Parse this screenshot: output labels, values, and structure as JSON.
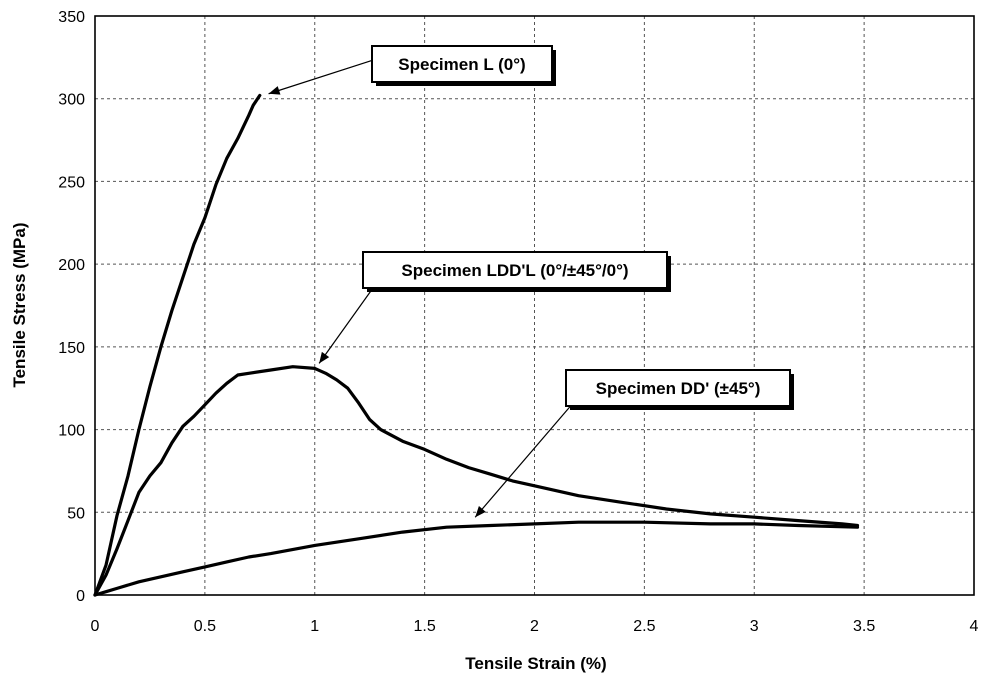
{
  "chart_data": {
    "type": "line",
    "title": "",
    "xlabel": "Tensile Strain (%)",
    "ylabel": "Tensile Stress (MPa)",
    "xlim": [
      0,
      4
    ],
    "ylim": [
      0,
      350
    ],
    "x_ticks": [
      "0",
      "0.5",
      "1",
      "1.5",
      "2",
      "2.5",
      "3",
      "3.5",
      "4"
    ],
    "y_ticks": [
      "0",
      "50",
      "100",
      "150",
      "200",
      "250",
      "300",
      "350"
    ],
    "grid": true,
    "legend": "none",
    "series": [
      {
        "key": "L",
        "x": [
          0,
          0.05,
          0.1,
          0.15,
          0.2,
          0.25,
          0.3,
          0.35,
          0.4,
          0.45,
          0.5,
          0.55,
          0.6,
          0.65,
          0.7,
          0.72,
          0.75
        ],
        "y": [
          0,
          18,
          48,
          72,
          100,
          126,
          150,
          172,
          192,
          212,
          228,
          248,
          264,
          276,
          290,
          296,
          302
        ]
      },
      {
        "key": "LDD'L",
        "x": [
          0,
          0.05,
          0.1,
          0.15,
          0.2,
          0.25,
          0.3,
          0.35,
          0.4,
          0.45,
          0.5,
          0.55,
          0.6,
          0.65,
          0.7,
          0.8,
          0.9,
          1.0,
          1.05,
          1.1,
          1.15,
          1.2,
          1.25,
          1.3,
          1.4,
          1.5,
          1.6,
          1.7,
          1.8,
          1.9,
          2.0,
          2.2,
          2.4,
          2.6,
          2.8,
          3.0,
          3.2,
          3.4,
          3.47
        ],
        "y": [
          0,
          12,
          28,
          45,
          62,
          72,
          80,
          92,
          102,
          108,
          115,
          122,
          128,
          133,
          134,
          136,
          138,
          137,
          134,
          130,
          125,
          116,
          106,
          100,
          93,
          88,
          82,
          77,
          73,
          69,
          66,
          60,
          56,
          52,
          49,
          47,
          45,
          43,
          42
        ]
      },
      {
        "key": "DD'",
        "x": [
          0,
          0.05,
          0.1,
          0.2,
          0.3,
          0.4,
          0.5,
          0.6,
          0.7,
          0.8,
          1.0,
          1.2,
          1.4,
          1.6,
          1.8,
          2.0,
          2.2,
          2.5,
          2.8,
          3.0,
          3.2,
          3.47
        ],
        "y": [
          0,
          2,
          4,
          8,
          11,
          14,
          17,
          20,
          23,
          25,
          30,
          34,
          38,
          41,
          42,
          43,
          44,
          44,
          43,
          43,
          42,
          41
        ]
      }
    ],
    "annotations": [
      {
        "text": "Specimen L (0°)",
        "x": 0.79,
        "y": 303
      },
      {
        "text": "Specimen LDD'L (0°/±45°/0°)",
        "x": 1.02,
        "y": 140
      },
      {
        "text": "Specimen DD' (±45°)",
        "x": 1.73,
        "y": 47
      }
    ]
  }
}
